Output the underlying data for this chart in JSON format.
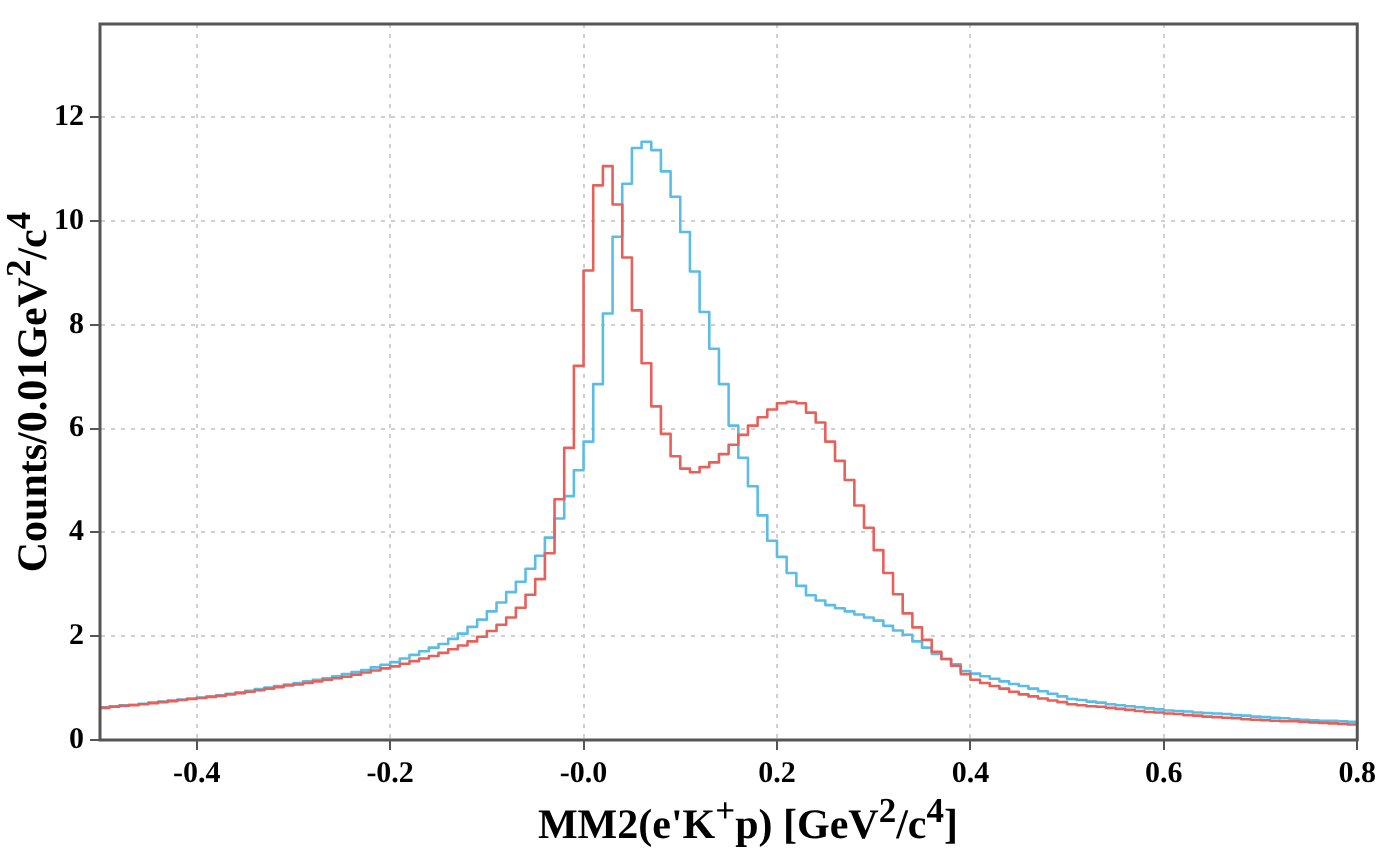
{
  "chart_data": {
    "type": "histogram",
    "xlabel": "MM2(e'K$^{+}$p) [GeV$^{2}$/c$^{4}$]",
    "ylabel": "Counts/0.01GeV$^{2}$/c$^{4}$",
    "bins": [
      -0.5,
      -0.49,
      -0.48,
      -0.47,
      -0.46,
      -0.45,
      -0.44,
      -0.43,
      -0.42,
      -0.41,
      -0.4,
      -0.39,
      -0.38,
      -0.37,
      -0.36,
      -0.35,
      -0.34,
      -0.33,
      -0.32,
      -0.31,
      -0.3,
      -0.29,
      -0.28,
      -0.27,
      -0.26,
      -0.25,
      -0.24,
      -0.23,
      -0.22,
      -0.21,
      -0.2,
      -0.19,
      -0.18,
      -0.17,
      -0.16,
      -0.15,
      -0.14,
      -0.13,
      -0.12,
      -0.11,
      -0.1,
      -0.09,
      -0.08,
      -0.07,
      -0.06,
      -0.05,
      -0.04,
      -0.03,
      -0.02,
      -0.01,
      0,
      0.01,
      0.02,
      0.03,
      0.04,
      0.05,
      0.06,
      0.07,
      0.08,
      0.09,
      0.1,
      0.11,
      0.12,
      0.13,
      0.14,
      0.15,
      0.16,
      0.17,
      0.18,
      0.19,
      0.2,
      0.21,
      0.22,
      0.23,
      0.24,
      0.25,
      0.26,
      0.27,
      0.28,
      0.29,
      0.3,
      0.31,
      0.32,
      0.33,
      0.34,
      0.35,
      0.36,
      0.37,
      0.38,
      0.39,
      0.4,
      0.41,
      0.42,
      0.43,
      0.44,
      0.45,
      0.46,
      0.47,
      0.48,
      0.49,
      0.5,
      0.51,
      0.52,
      0.53,
      0.54,
      0.55,
      0.56,
      0.57,
      0.58,
      0.59,
      0.6,
      0.61,
      0.62,
      0.63,
      0.64,
      0.65,
      0.66,
      0.67,
      0.68,
      0.69,
      0.7,
      0.71,
      0.72,
      0.73,
      0.74,
      0.75,
      0.76,
      0.77,
      0.78,
      0.79,
      0.8
    ],
    "series": [
      {
        "color": "#e8605a",
        "values": [
          0.62,
          0.64,
          0.66,
          0.67,
          0.69,
          0.71,
          0.73,
          0.75,
          0.77,
          0.79,
          0.81,
          0.83,
          0.85,
          0.88,
          0.9,
          0.93,
          0.96,
          0.99,
          1.02,
          1.05,
          1.07,
          1.1,
          1.13,
          1.16,
          1.19,
          1.22,
          1.26,
          1.3,
          1.34,
          1.38,
          1.42,
          1.47,
          1.52,
          1.57,
          1.62,
          1.68,
          1.75,
          1.82,
          1.9,
          1.99,
          2.1,
          2.22,
          2.36,
          2.55,
          2.8,
          3.1,
          3.6,
          4.64,
          5.63,
          7.21,
          9.05,
          10.69,
          11.06,
          10.32,
          9.3,
          8.28,
          7.26,
          6.43,
          5.9,
          5.47,
          5.23,
          5.16,
          5.26,
          5.35,
          5.51,
          5.69,
          5.88,
          6.06,
          6.22,
          6.37,
          6.49,
          6.52,
          6.49,
          6.31,
          6.12,
          5.75,
          5.38,
          5.01,
          4.52,
          4.09,
          3.66,
          3.22,
          2.81,
          2.44,
          2.17,
          1.93,
          1.7,
          1.56,
          1.43,
          1.27,
          1.16,
          1.1,
          1.04,
          0.99,
          0.93,
          0.88,
          0.84,
          0.8,
          0.76,
          0.73,
          0.69,
          0.67,
          0.65,
          0.64,
          0.62,
          0.6,
          0.58,
          0.56,
          0.54,
          0.53,
          0.51,
          0.5,
          0.48,
          0.47,
          0.45,
          0.44,
          0.43,
          0.42,
          0.4,
          0.39,
          0.38,
          0.37,
          0.36,
          0.36,
          0.35,
          0.34,
          0.33,
          0.32,
          0.31,
          0.3
        ]
      },
      {
        "color": "#5bbde6",
        "values": [
          0.63,
          0.65,
          0.67,
          0.68,
          0.7,
          0.72,
          0.74,
          0.76,
          0.78,
          0.8,
          0.82,
          0.84,
          0.86,
          0.89,
          0.92,
          0.95,
          0.98,
          1.01,
          1.04,
          1.07,
          1.1,
          1.13,
          1.16,
          1.19,
          1.23,
          1.27,
          1.31,
          1.35,
          1.4,
          1.45,
          1.5,
          1.57,
          1.64,
          1.71,
          1.78,
          1.85,
          1.95,
          2.05,
          2.18,
          2.32,
          2.48,
          2.65,
          2.85,
          3.05,
          3.3,
          3.55,
          3.9,
          4.27,
          4.7,
          5.2,
          5.75,
          6.86,
          8.22,
          9.7,
          10.72,
          11.41,
          11.53,
          11.37,
          10.96,
          10.47,
          9.79,
          9.03,
          8.25,
          7.54,
          6.86,
          6.06,
          5.44,
          4.89,
          4.33,
          3.84,
          3.53,
          3.22,
          2.97,
          2.79,
          2.69,
          2.6,
          2.54,
          2.48,
          2.42,
          2.36,
          2.3,
          2.2,
          2.11,
          2.03,
          1.9,
          1.78,
          1.66,
          1.56,
          1.46,
          1.33,
          1.28,
          1.23,
          1.18,
          1.13,
          1.08,
          1.04,
          0.99,
          0.94,
          0.89,
          0.84,
          0.79,
          0.77,
          0.74,
          0.72,
          0.69,
          0.67,
          0.65,
          0.63,
          0.61,
          0.59,
          0.57,
          0.56,
          0.55,
          0.53,
          0.52,
          0.51,
          0.5,
          0.48,
          0.47,
          0.45,
          0.44,
          0.43,
          0.42,
          0.4,
          0.39,
          0.38,
          0.37,
          0.37,
          0.36,
          0.35
        ]
      }
    ],
    "xlim": [
      -0.5,
      0.8
    ],
    "xticks": [
      -0.4,
      -0.2,
      {
        "value": 0,
        "label": "-0.0"
      },
      0.2,
      0.4,
      0.6,
      0.8
    ],
    "ylim": [
      0,
      13.8
    ],
    "yticks": [
      0,
      2,
      4,
      6,
      8,
      10,
      12
    ],
    "grid": true
  }
}
